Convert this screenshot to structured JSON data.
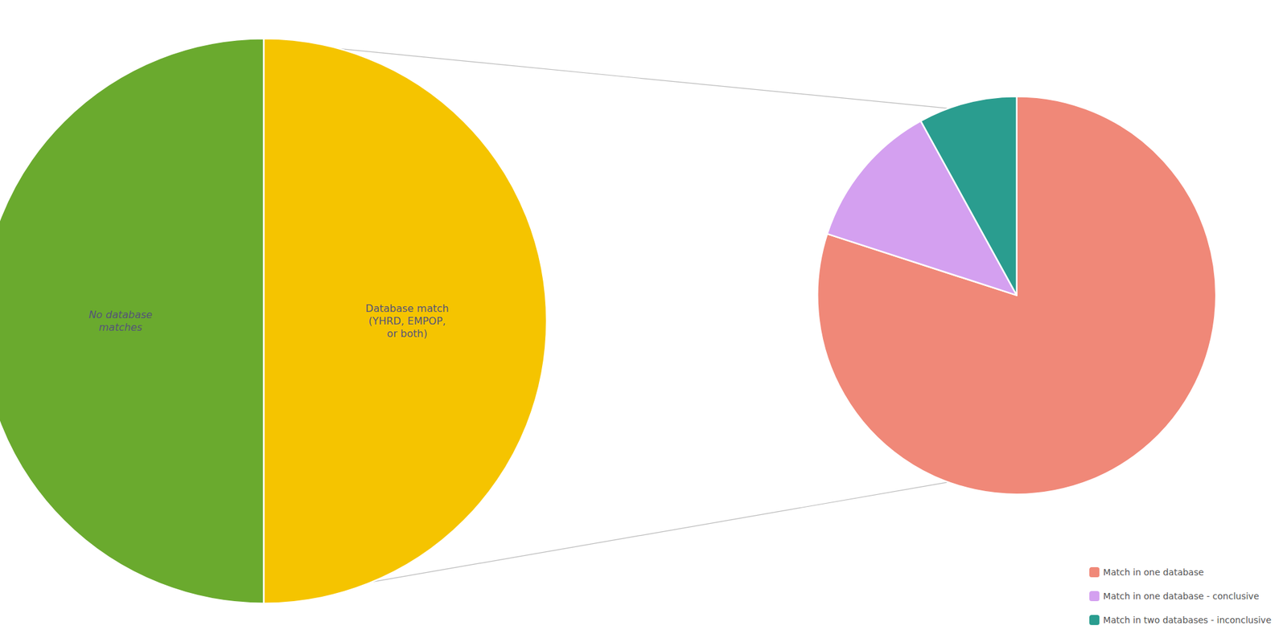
{
  "chart_data": [
    {
      "type": "pie",
      "categories": [
        "No database\nmatches",
        "Database match\n(YHRD, EMPOP,\nor both)"
      ],
      "values": [
        50,
        50
      ],
      "colors": [
        "#6aaa2e",
        "#f5c400"
      ]
    },
    {
      "type": "pie",
      "categories": [
        "Match in one database",
        "Match in one database - conclusive",
        "Match in two databases - inconclusive"
      ],
      "values": [
        80,
        12,
        8
      ],
      "colors": [
        "#f08878",
        "#d4a0f0",
        "#2a9d8f"
      ],
      "legend": "lower right"
    }
  ]
}
